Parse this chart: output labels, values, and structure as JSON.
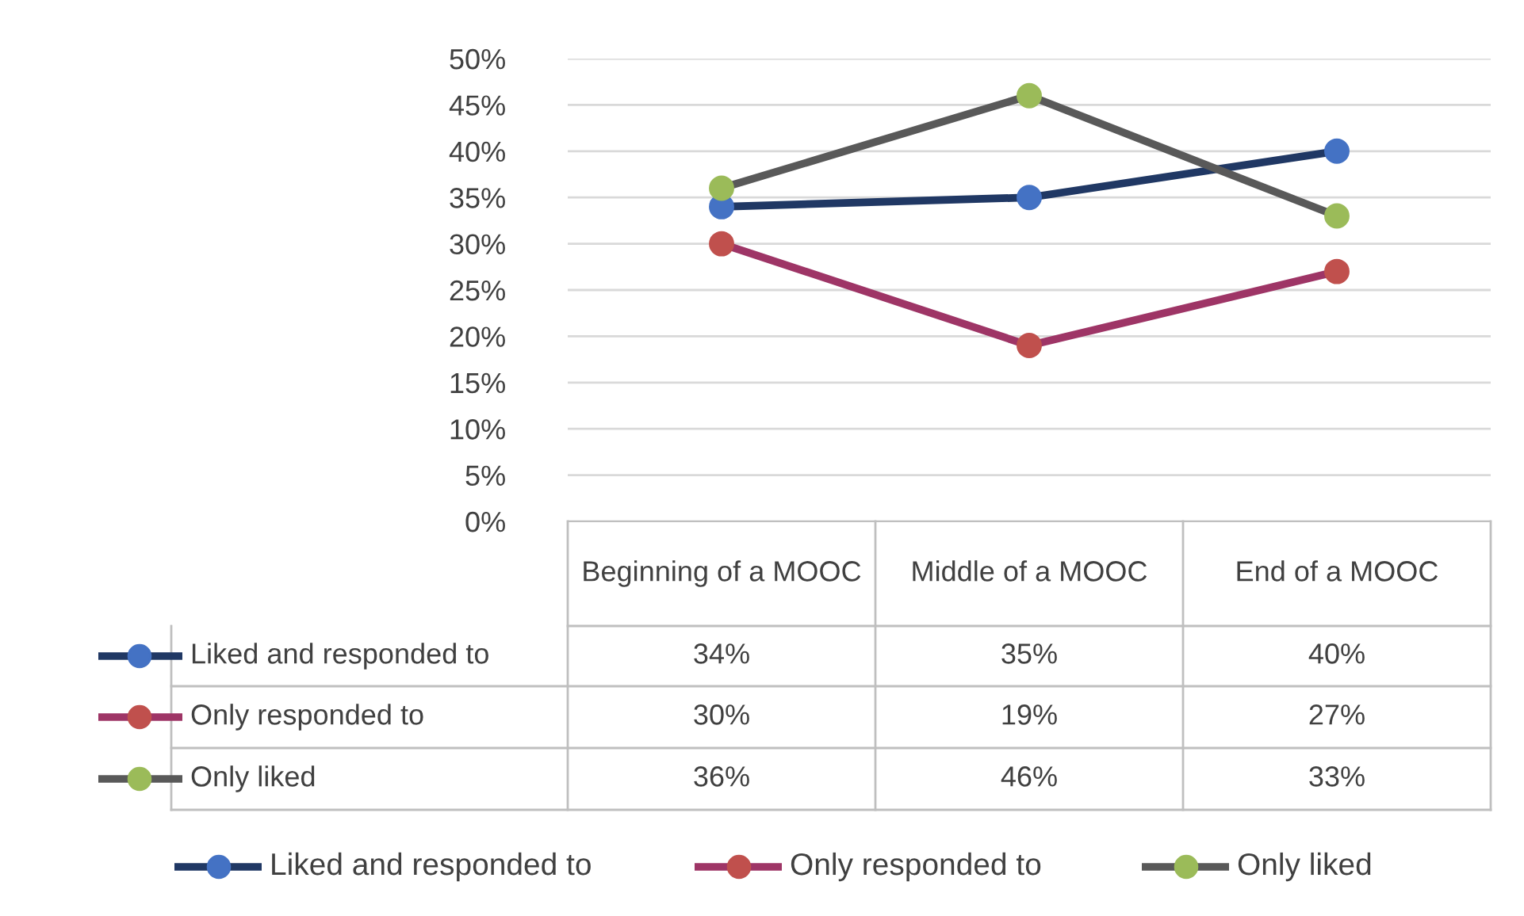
{
  "chart_data": {
    "type": "line",
    "categories": [
      "Beginning of a MOOC",
      "Middle of a MOOC",
      "End of a MOOC"
    ],
    "series": [
      {
        "name": "Liked and responded to",
        "color": "#203864",
        "colors": [
          "#4472c4",
          "#4472c4",
          "#4472c4"
        ],
        "values": [
          34,
          35,
          40
        ]
      },
      {
        "name": "Only responded to",
        "color": "#9e3566",
        "colors": [
          "#c0504d",
          "#c0504d",
          "#c0504d"
        ],
        "values": [
          30,
          19,
          27
        ]
      },
      {
        "name": "Only liked",
        "color": "#595959",
        "colors": [
          "#9bbb59",
          "#9bbb59",
          "#9bbb59"
        ],
        "values": [
          36,
          46,
          33
        ]
      }
    ],
    "ylim": [
      0,
      50
    ],
    "yticks": [
      {
        "value": 0,
        "label": "0%"
      },
      {
        "value": 5,
        "label": "5%"
      },
      {
        "value": 10,
        "label": "10%"
      },
      {
        "value": 15,
        "label": "15%"
      },
      {
        "value": 20,
        "label": "20%"
      },
      {
        "value": 25,
        "label": "25%"
      },
      {
        "value": 30,
        "label": "30%"
      },
      {
        "value": 35,
        "label": "35%"
      },
      {
        "value": 40,
        "label": "40%"
      },
      {
        "value": 45,
        "label": "45%"
      },
      {
        "value": 50,
        "label": "50%"
      }
    ],
    "value_labels": [
      [
        "34%",
        "35%",
        "40%"
      ],
      [
        "30%",
        "19%",
        "27%"
      ],
      [
        "36%",
        "46%",
        "33%"
      ]
    ],
    "grid": "y",
    "legend": "bottom",
    "marker": "circle",
    "line_style": "solid"
  }
}
